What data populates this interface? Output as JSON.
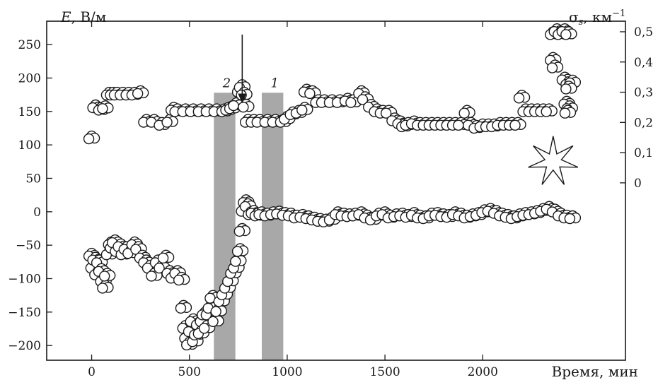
{
  "chart_data": {
    "type": "scatter",
    "title": "",
    "x_axis": {
      "label": "Время, мин",
      "range": [
        -230,
        2730
      ],
      "ticks": [
        0,
        500,
        1000,
        1500,
        2000
      ]
    },
    "y_left": {
      "label_var": "E",
      "label_unit": ", В/м",
      "range": [
        -222,
        285
      ],
      "ticks": [
        -200,
        -150,
        -100,
        -50,
        0,
        50,
        100,
        150,
        200,
        250
      ]
    },
    "y_right": {
      "label_var": "σ",
      "label_sub": "s",
      "label_unit": ", км",
      "label_sup": "−1",
      "range": [
        -0.587,
        0.535
      ],
      "ticks": [
        0,
        0.1,
        0.2,
        0.3,
        0.4,
        0.5
      ],
      "tick_labels": [
        "0",
        "0,1",
        "0,2",
        "0,3",
        "0,4",
        "0,5"
      ]
    },
    "grid": false,
    "bands": [
      {
        "label": "2",
        "x_start": 625,
        "x_end": 735,
        "color": "#a8a8a8"
      },
      {
        "label": "1",
        "x_start": 870,
        "x_end": 980,
        "color": "#a8a8a8"
      }
    ],
    "arrow": {
      "x": 770,
      "y_top": 265,
      "y_bottom": 162
    },
    "star": {
      "x": 2360,
      "y": 75
    },
    "series": [
      {
        "axis": "left",
        "points": [
          [
            0,
            -62
          ],
          [
            10,
            -80
          ],
          [
            20,
            -68
          ],
          [
            30,
            -90
          ],
          [
            40,
            -72
          ],
          [
            50,
            -85
          ],
          [
            60,
            -100
          ],
          [
            70,
            -110
          ],
          [
            80,
            -92
          ],
          [
            90,
            -60
          ],
          [
            100,
            -45
          ],
          [
            110,
            -50
          ],
          [
            120,
            -42
          ],
          [
            135,
            -55
          ],
          [
            150,
            -48
          ],
          [
            165,
            -60
          ],
          [
            180,
            -52
          ],
          [
            200,
            -58
          ],
          [
            220,
            -45
          ],
          [
            240,
            -52
          ],
          [
            260,
            -65
          ],
          [
            280,
            -72
          ],
          [
            300,
            -80
          ],
          [
            320,
            -92
          ],
          [
            340,
            -72
          ],
          [
            360,
            -80
          ],
          [
            380,
            -65
          ],
          [
            400,
            -88
          ],
          [
            420,
            -95
          ],
          [
            440,
            -88
          ],
          [
            460,
            -98
          ],
          [
            470,
            -140
          ],
          [
            480,
            -170
          ],
          [
            490,
            -185
          ],
          [
            500,
            -195
          ],
          [
            510,
            -175
          ],
          [
            520,
            -160
          ],
          [
            530,
            -190
          ],
          [
            540,
            -180
          ],
          [
            550,
            -165
          ],
          [
            560,
            -178
          ],
          [
            570,
            -160
          ],
          [
            580,
            -150
          ],
          [
            590,
            -170
          ],
          [
            600,
            -150
          ],
          [
            610,
            -140
          ],
          [
            620,
            -125
          ],
          [
            635,
            -160
          ],
          [
            650,
            -145
          ],
          [
            665,
            -130
          ],
          [
            680,
            -120
          ],
          [
            695,
            -110
          ],
          [
            710,
            -100
          ],
          [
            725,
            -88
          ],
          [
            740,
            -80
          ],
          [
            750,
            -70
          ],
          [
            760,
            -55
          ],
          [
            770,
            -25
          ],
          [
            780,
            5
          ],
          [
            790,
            18
          ],
          [
            800,
            12
          ],
          [
            815,
            0
          ],
          [
            830,
            2
          ],
          [
            850,
            -2
          ],
          [
            870,
            0
          ],
          [
            900,
            -2
          ],
          [
            930,
            0
          ],
          [
            960,
            1
          ],
          [
            990,
            -1
          ],
          [
            1020,
            -2
          ],
          [
            1050,
            -5
          ],
          [
            1080,
            -4
          ],
          [
            1110,
            -6
          ],
          [
            1140,
            -8
          ],
          [
            1170,
            -10
          ],
          [
            1200,
            -11
          ],
          [
            1230,
            -8
          ],
          [
            1260,
            0
          ],
          [
            1290,
            -2
          ],
          [
            1320,
            -3
          ],
          [
            1350,
            -2
          ],
          [
            1380,
            0
          ],
          [
            1410,
            -5
          ],
          [
            1440,
            -8
          ],
          [
            1470,
            -2
          ],
          [
            1500,
            0
          ],
          [
            1530,
            -5
          ],
          [
            1560,
            -3
          ],
          [
            1590,
            -2
          ],
          [
            1620,
            -4
          ],
          [
            1650,
            -1
          ],
          [
            1680,
            -5
          ],
          [
            1710,
            -6
          ],
          [
            1740,
            -2
          ],
          [
            1770,
            -1
          ],
          [
            1800,
            -3
          ],
          [
            1830,
            -4
          ],
          [
            1860,
            0
          ],
          [
            1890,
            -2
          ],
          [
            1920,
            -5
          ],
          [
            1950,
            -3
          ],
          [
            1980,
            -1
          ],
          [
            2010,
            3
          ],
          [
            2040,
            5
          ],
          [
            2070,
            2
          ],
          [
            2100,
            -2
          ],
          [
            2130,
            -4
          ],
          [
            2160,
            -6
          ],
          [
            2190,
            -3
          ],
          [
            2220,
            -1
          ],
          [
            2250,
            0
          ],
          [
            2280,
            2
          ],
          [
            2310,
            5
          ],
          [
            2340,
            8
          ],
          [
            2370,
            4
          ],
          [
            2400,
            -2
          ],
          [
            2430,
            -5
          ],
          [
            2460,
            -6
          ]
        ]
      },
      {
        "axis": "right",
        "points": [
          [
            0,
            0.155
          ],
          [
            20,
            0.258
          ],
          [
            50,
            0.25
          ],
          [
            70,
            0.255
          ],
          [
            90,
            0.3
          ],
          [
            110,
            0.3
          ],
          [
            130,
            0.3
          ],
          [
            160,
            0.3
          ],
          [
            190,
            0.3
          ],
          [
            220,
            0.3
          ],
          [
            250,
            0.305
          ],
          [
            280,
            0.21
          ],
          [
            320,
            0.21
          ],
          [
            360,
            0.2
          ],
          [
            400,
            0.21
          ],
          [
            420,
            0.25
          ],
          [
            440,
            0.245
          ],
          [
            480,
            0.245
          ],
          [
            520,
            0.245
          ],
          [
            560,
            0.245
          ],
          [
            600,
            0.245
          ],
          [
            640,
            0.245
          ],
          [
            680,
            0.245
          ],
          [
            700,
            0.25
          ],
          [
            720,
            0.255
          ],
          [
            740,
            0.265
          ],
          [
            760,
            0.31
          ],
          [
            770,
            0.325
          ],
          [
            780,
            0.3
          ],
          [
            790,
            0.26
          ],
          [
            800,
            0.21
          ],
          [
            830,
            0.21
          ],
          [
            860,
            0.21
          ],
          [
            900,
            0.21
          ],
          [
            940,
            0.21
          ],
          [
            980,
            0.21
          ],
          [
            1000,
            0.22
          ],
          [
            1030,
            0.235
          ],
          [
            1060,
            0.24
          ],
          [
            1090,
            0.25
          ],
          [
            1100,
            0.31
          ],
          [
            1130,
            0.305
          ],
          [
            1160,
            0.275
          ],
          [
            1190,
            0.275
          ],
          [
            1230,
            0.275
          ],
          [
            1270,
            0.275
          ],
          [
            1310,
            0.28
          ],
          [
            1340,
            0.275
          ],
          [
            1380,
            0.305
          ],
          [
            1400,
            0.285
          ],
          [
            1430,
            0.26
          ],
          [
            1460,
            0.245
          ],
          [
            1490,
            0.24
          ],
          [
            1520,
            0.24
          ],
          [
            1550,
            0.215
          ],
          [
            1580,
            0.205
          ],
          [
            1600,
            0.195
          ],
          [
            1620,
            0.2
          ],
          [
            1650,
            0.205
          ],
          [
            1680,
            0.2
          ],
          [
            1710,
            0.2
          ],
          [
            1740,
            0.2
          ],
          [
            1770,
            0.2
          ],
          [
            1800,
            0.2
          ],
          [
            1830,
            0.2
          ],
          [
            1860,
            0.2
          ],
          [
            1890,
            0.2
          ],
          [
            1920,
            0.24
          ],
          [
            1940,
            0.2
          ],
          [
            1970,
            0.19
          ],
          [
            2000,
            0.195
          ],
          [
            2030,
            0.195
          ],
          [
            2060,
            0.195
          ],
          [
            2090,
            0.2
          ],
          [
            2120,
            0.2
          ],
          [
            2150,
            0.2
          ],
          [
            2180,
            0.2
          ],
          [
            2200,
            0.29
          ],
          [
            2220,
            0.245
          ],
          [
            2250,
            0.245
          ],
          [
            2280,
            0.245
          ],
          [
            2310,
            0.245
          ],
          [
            2340,
            0.245
          ],
          [
            2360,
            0.5
          ],
          [
            2380,
            0.51
          ],
          [
            2400,
            0.5
          ],
          [
            2420,
            0.51
          ],
          [
            2440,
            0.5
          ],
          [
            2360,
            0.415
          ],
          [
            2370,
            0.39
          ],
          [
            2420,
            0.35
          ],
          [
            2440,
            0.335
          ],
          [
            2460,
            0.34
          ],
          [
            2440,
            0.32
          ],
          [
            2430,
            0.27
          ],
          [
            2445,
            0.255
          ],
          [
            2435,
            0.24
          ]
        ]
      }
    ]
  }
}
